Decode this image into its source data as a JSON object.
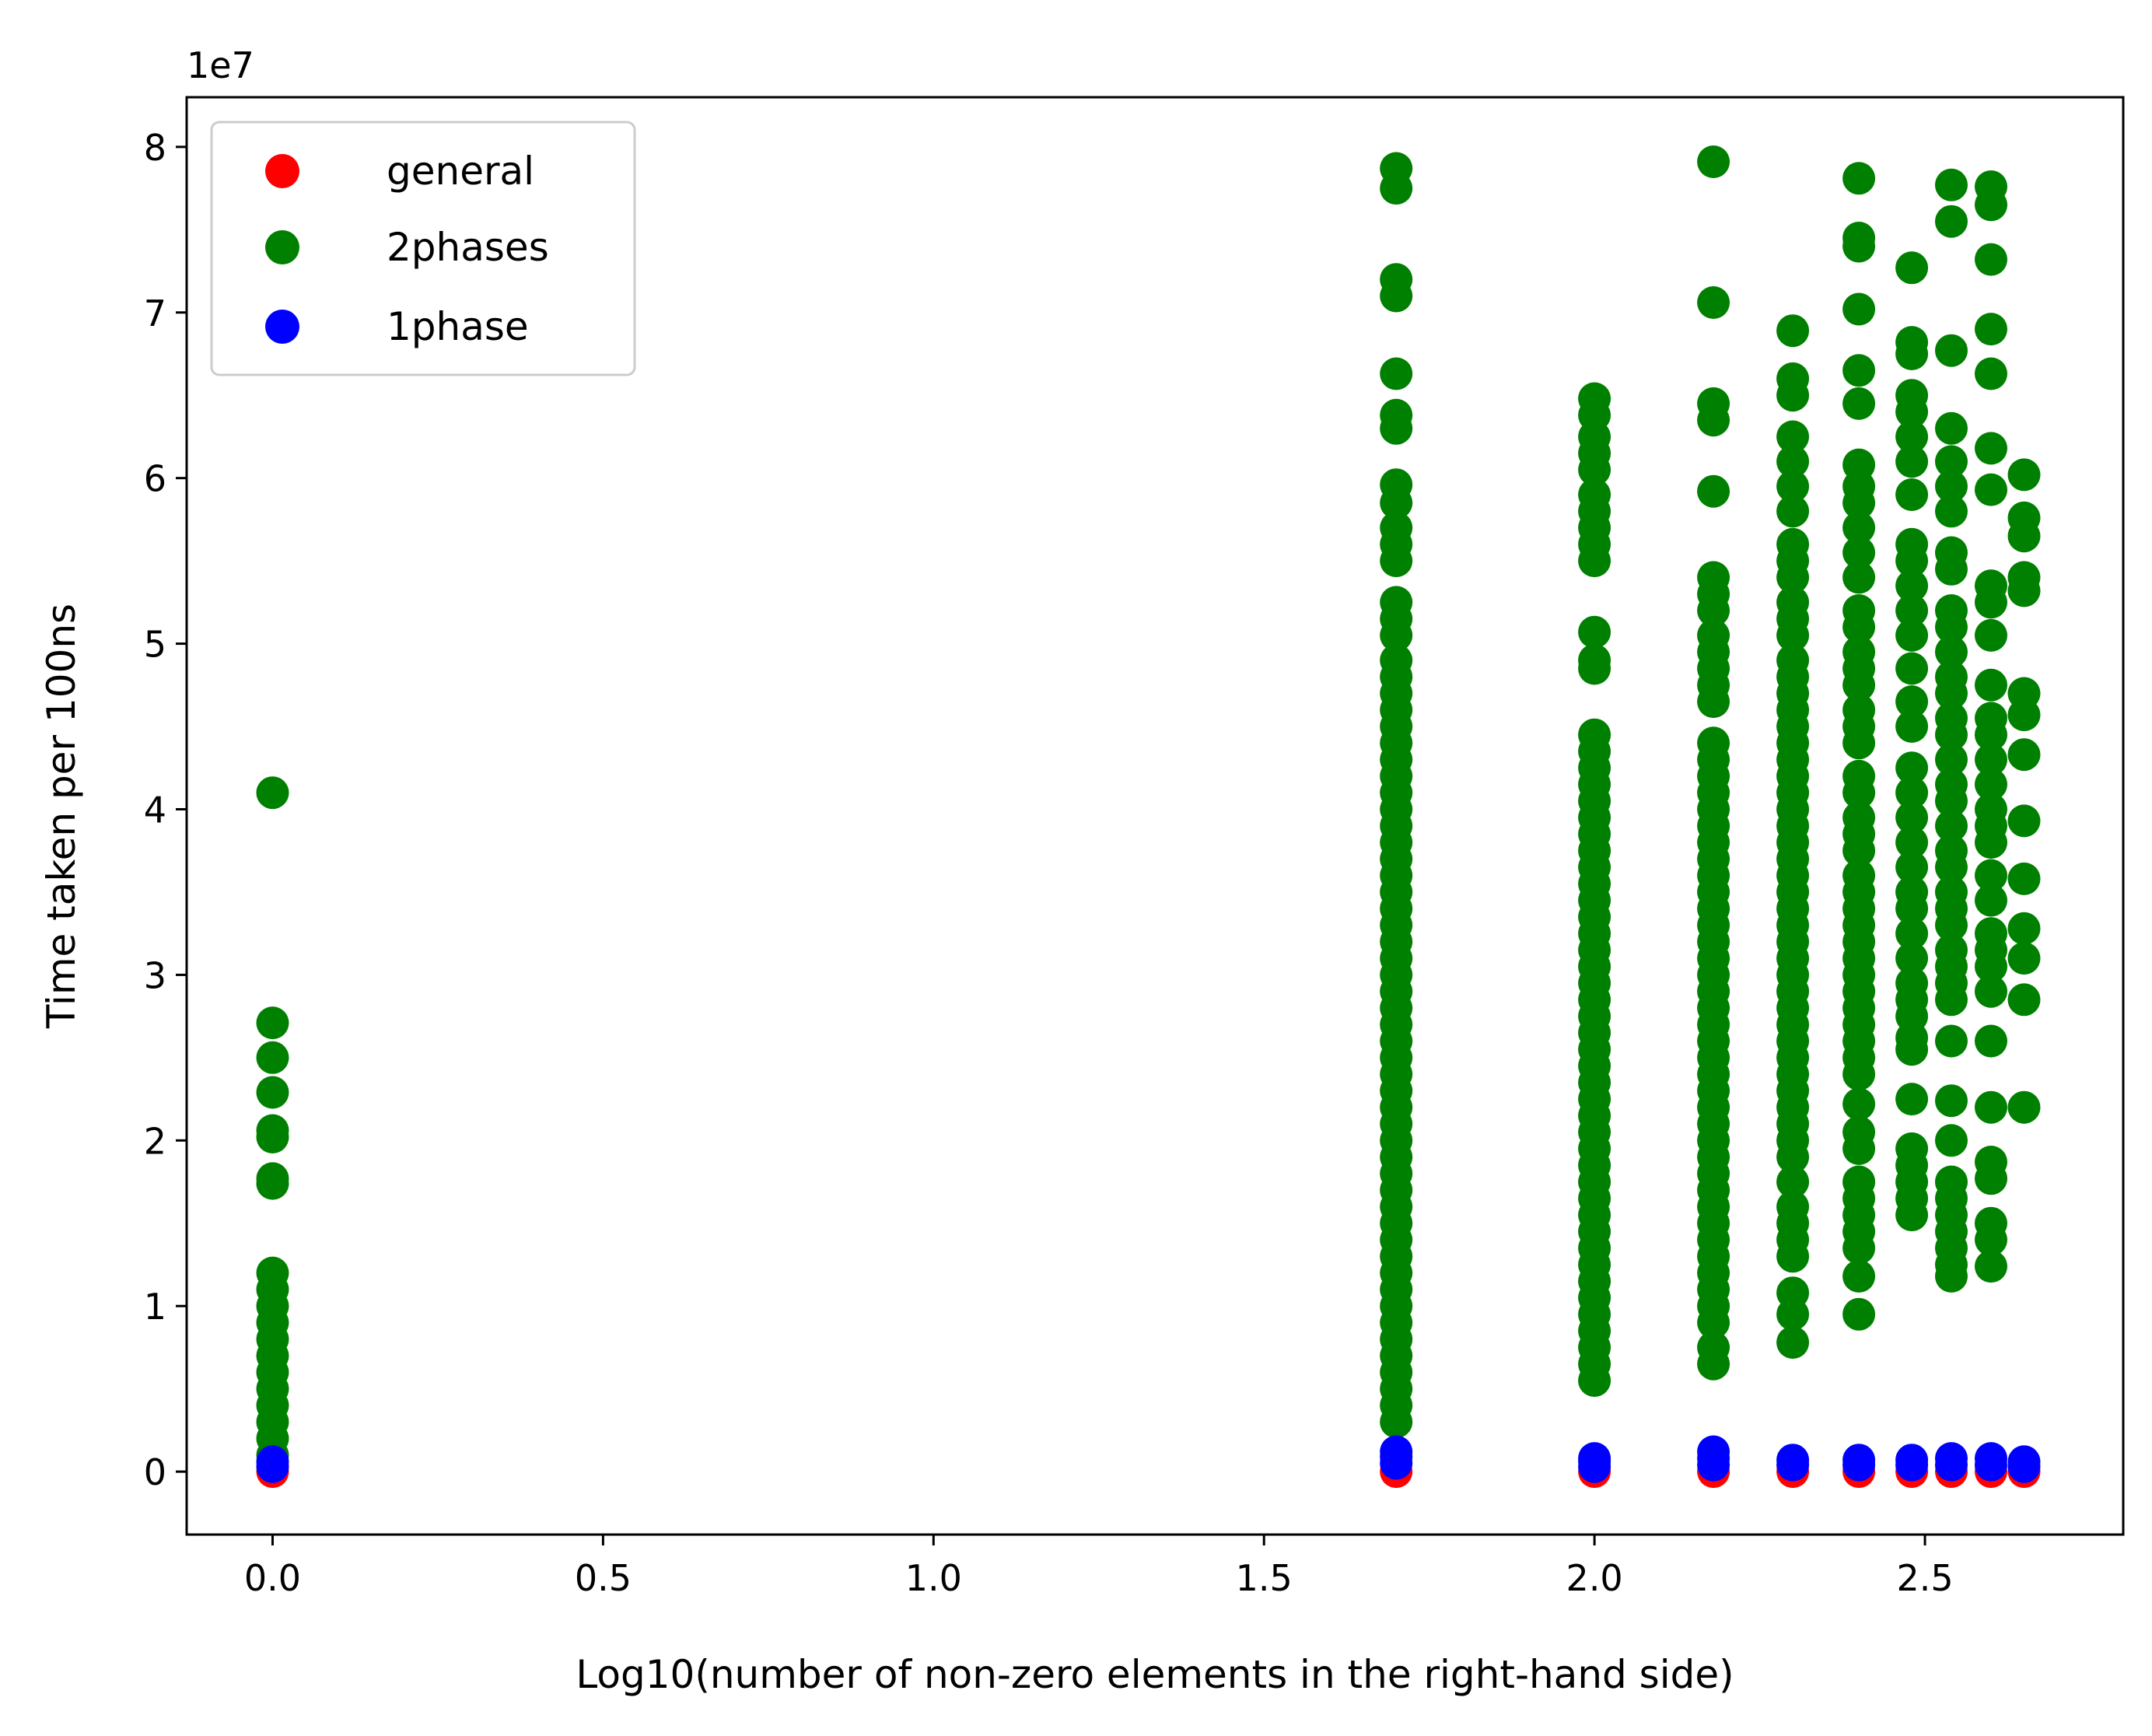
{
  "chart_data": {
    "type": "scatter",
    "title": "",
    "xlabel": "Log10(number of non-zero elements in the right-hand side)",
    "ylabel": "Time taken per 100ns",
    "y_offset_label": "1e7",
    "xlim": [
      -0.13,
      2.8
    ],
    "ylim": [
      -0.38,
      8.3
    ],
    "x_ticks": [
      0.0,
      0.5,
      1.0,
      1.5,
      2.0,
      2.5
    ],
    "x_tick_labels": [
      "0.0",
      "0.5",
      "1.0",
      "1.5",
      "2.0",
      "2.5"
    ],
    "y_ticks": [
      0,
      1,
      2,
      3,
      4,
      5,
      6,
      7,
      8
    ],
    "y_tick_labels": [
      "0",
      "1",
      "2",
      "3",
      "4",
      "5",
      "6",
      "7",
      "8"
    ],
    "grid": false,
    "legend_position": "top-left",
    "series": [
      {
        "name": "general",
        "color": "#ff0000",
        "points": [
          [
            0.0,
            0.0
          ],
          [
            1.7,
            0.0
          ],
          [
            2.0,
            0.0
          ],
          [
            2.18,
            0.0
          ],
          [
            2.3,
            0.0
          ],
          [
            2.4,
            0.0
          ],
          [
            2.48,
            0.0
          ],
          [
            2.54,
            0.0
          ],
          [
            2.6,
            0.0
          ],
          [
            2.65,
            0.0
          ]
        ]
      },
      {
        "name": "2phases",
        "color": "#008000",
        "columns": [
          {
            "x": 0.0,
            "values": [
              4.1,
              2.71,
              2.5,
              2.29,
              2.06,
              2.02,
              1.77,
              1.74,
              1.2,
              1.1,
              1.0,
              0.9,
              0.8,
              0.7,
              0.6,
              0.5,
              0.4,
              0.3,
              0.2,
              0.1
            ]
          },
          {
            "x": 1.7,
            "values": [
              7.87,
              7.75,
              7.2,
              7.1,
              6.63,
              6.38,
              6.3,
              5.96,
              5.85,
              5.7,
              5.6,
              5.5,
              5.25,
              5.15,
              5.05,
              4.9,
              4.8,
              4.7,
              4.6,
              4.5,
              4.4,
              4.3,
              4.2,
              4.1,
              4.0,
              3.9,
              3.8,
              3.7,
              3.6,
              3.5,
              3.4,
              3.3,
              3.2,
              3.1,
              3.0,
              2.9,
              2.8,
              2.7,
              2.6,
              2.5,
              2.4,
              2.3,
              2.2,
              2.1,
              2.0,
              1.9,
              1.8,
              1.7,
              1.6,
              1.5,
              1.4,
              1.3,
              1.2,
              1.1,
              1.0,
              0.9,
              0.8,
              0.7,
              0.6,
              0.5,
              0.4,
              0.3
            ]
          },
          {
            "x": 2.0,
            "values": [
              6.48,
              6.38,
              6.25,
              6.15,
              6.05,
              5.9,
              5.8,
              5.7,
              5.6,
              5.5,
              5.07,
              4.9,
              4.85,
              4.45,
              4.35,
              4.25,
              4.15,
              4.05,
              3.95,
              3.85,
              3.75,
              3.65,
              3.55,
              3.45,
              3.35,
              3.25,
              3.15,
              3.05,
              2.95,
              2.85,
              2.75,
              2.65,
              2.55,
              2.45,
              2.35,
              2.25,
              2.15,
              2.05,
              1.95,
              1.85,
              1.75,
              1.65,
              1.55,
              1.45,
              1.35,
              1.25,
              1.15,
              1.05,
              0.95,
              0.85,
              0.75,
              0.65,
              0.55
            ]
          },
          {
            "x": 2.18,
            "values": [
              7.91,
              7.06,
              6.45,
              6.35,
              5.92,
              5.4,
              5.3,
              5.2,
              5.05,
              4.95,
              4.85,
              4.75,
              4.65,
              4.4,
              4.3,
              4.2,
              4.1,
              4.0,
              3.9,
              3.8,
              3.7,
              3.6,
              3.5,
              3.4,
              3.3,
              3.2,
              3.1,
              3.0,
              2.9,
              2.8,
              2.7,
              2.6,
              2.5,
              2.4,
              2.3,
              2.2,
              2.1,
              2.0,
              1.9,
              1.8,
              1.7,
              1.6,
              1.5,
              1.4,
              1.3,
              1.2,
              1.1,
              1.0,
              0.9,
              0.75,
              0.65
            ]
          },
          {
            "x": 2.3,
            "values": [
              6.89,
              6.6,
              6.5,
              6.25,
              6.1,
              5.95,
              5.8,
              5.6,
              5.5,
              5.4,
              5.25,
              5.15,
              5.05,
              4.9,
              4.8,
              4.7,
              4.6,
              4.5,
              4.4,
              4.3,
              4.2,
              4.1,
              4.0,
              3.9,
              3.8,
              3.7,
              3.6,
              3.5,
              3.4,
              3.3,
              3.2,
              3.1,
              3.0,
              2.9,
              2.8,
              2.7,
              2.6,
              2.5,
              2.4,
              2.3,
              2.2,
              2.1,
              2.0,
              1.9,
              1.75,
              1.6,
              1.5,
              1.4,
              1.3,
              1.08,
              0.95,
              0.78
            ]
          },
          {
            "x": 2.4,
            "values": [
              7.81,
              7.45,
              7.4,
              7.02,
              6.65,
              6.45,
              6.08,
              5.95,
              5.85,
              5.7,
              5.55,
              5.4,
              5.2,
              5.1,
              4.95,
              4.85,
              4.75,
              4.6,
              4.5,
              4.4,
              4.2,
              4.1,
              3.95,
              3.85,
              3.75,
              3.6,
              3.5,
              3.4,
              3.3,
              3.2,
              3.1,
              3.0,
              2.9,
              2.8,
              2.7,
              2.6,
              2.5,
              2.4,
              2.22,
              2.05,
              1.95,
              1.75,
              1.65,
              1.55,
              1.45,
              1.35,
              1.18,
              0.95
            ]
          },
          {
            "x": 2.48,
            "values": [
              7.27,
              6.82,
              6.75,
              6.5,
              6.4,
              6.25,
              6.1,
              5.9,
              5.6,
              5.5,
              5.35,
              5.2,
              5.05,
              4.85,
              4.65,
              4.5,
              4.25,
              4.1,
              3.95,
              3.8,
              3.65,
              3.5,
              3.4,
              3.25,
              3.1,
              2.95,
              2.85,
              2.75,
              2.62,
              2.55,
              2.25,
              1.95,
              1.85,
              1.75,
              1.65,
              1.55
            ]
          },
          {
            "x": 2.54,
            "values": [
              7.77,
              7.55,
              6.77,
              6.3,
              6.1,
              5.95,
              5.8,
              5.55,
              5.45,
              5.2,
              5.1,
              4.95,
              4.8,
              4.7,
              4.55,
              4.45,
              4.3,
              4.15,
              4.05,
              3.9,
              3.75,
              3.65,
              3.5,
              3.4,
              3.3,
              3.15,
              3.05,
              2.95,
              2.85,
              2.6,
              2.24,
              2.0,
              1.75,
              1.65,
              1.55,
              1.45,
              1.35,
              1.25,
              1.18
            ]
          },
          {
            "x": 2.6,
            "values": [
              7.76,
              7.65,
              7.32,
              6.9,
              6.63,
              6.18,
              5.93,
              5.35,
              5.25,
              5.05,
              4.75,
              4.55,
              4.45,
              4.3,
              4.15,
              4.0,
              3.9,
              3.8,
              3.6,
              3.45,
              3.25,
              3.15,
              3.05,
              2.9,
              2.6,
              2.2,
              1.87,
              1.77,
              1.5,
              1.4,
              1.24
            ]
          },
          {
            "x": 2.65,
            "values": [
              6.02,
              5.76,
              5.65,
              5.4,
              5.32,
              4.7,
              4.57,
              4.33,
              3.93,
              3.58,
              3.28,
              3.1,
              2.85,
              2.2
            ]
          }
        ]
      },
      {
        "name": "1phase",
        "color": "#0000ff",
        "points": [
          [
            0.0,
            0.03
          ],
          [
            0.0,
            0.06
          ],
          [
            1.7,
            0.05
          ],
          [
            1.7,
            0.09
          ],
          [
            1.7,
            0.12
          ],
          [
            2.0,
            0.03
          ],
          [
            2.0,
            0.06
          ],
          [
            2.0,
            0.08
          ],
          [
            2.18,
            0.04
          ],
          [
            2.18,
            0.08
          ],
          [
            2.18,
            0.12
          ],
          [
            2.3,
            0.04
          ],
          [
            2.3,
            0.07
          ],
          [
            2.4,
            0.04
          ],
          [
            2.4,
            0.07
          ],
          [
            2.48,
            0.04
          ],
          [
            2.48,
            0.07
          ],
          [
            2.54,
            0.04
          ],
          [
            2.54,
            0.08
          ],
          [
            2.6,
            0.04
          ],
          [
            2.6,
            0.08
          ],
          [
            2.65,
            0.03
          ],
          [
            2.65,
            0.06
          ]
        ]
      }
    ]
  }
}
